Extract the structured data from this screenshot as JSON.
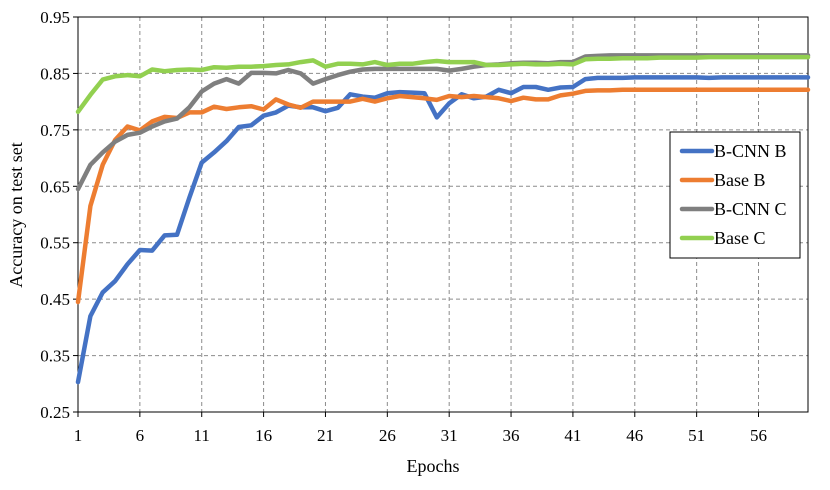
{
  "chart_data": {
    "type": "line",
    "xlabel": "Epochs",
    "ylabel": "Accuracy on test set",
    "xlim": [
      1,
      60
    ],
    "ylim": [
      0.25,
      0.95
    ],
    "x_ticks": [
      1,
      6,
      11,
      16,
      21,
      26,
      31,
      36,
      41,
      46,
      51,
      56
    ],
    "y_ticks": [
      0.25,
      0.35,
      0.45,
      0.55,
      0.65,
      0.75,
      0.85,
      0.95
    ],
    "y_tick_labels": [
      "0.25",
      "0.35",
      "0.45",
      "0.55",
      "0.65",
      "0.75",
      "0.85",
      "0.95"
    ],
    "grid": true,
    "legend_position": "right",
    "x": [
      1,
      2,
      3,
      4,
      5,
      6,
      7,
      8,
      9,
      10,
      11,
      12,
      13,
      14,
      15,
      16,
      17,
      18,
      19,
      20,
      21,
      22,
      23,
      24,
      25,
      26,
      27,
      28,
      29,
      30,
      31,
      32,
      33,
      34,
      35,
      36,
      37,
      38,
      39,
      40,
      41,
      42,
      43,
      44,
      45,
      46,
      47,
      48,
      49,
      50,
      51,
      52,
      53,
      54,
      55,
      56,
      57,
      58,
      59,
      60
    ],
    "series": [
      {
        "name": "B-CNN B",
        "color": "#4472C4",
        "values": [
          0.303,
          0.42,
          0.462,
          0.482,
          0.512,
          0.537,
          0.536,
          0.563,
          0.564,
          0.63,
          0.692,
          0.71,
          0.73,
          0.755,
          0.758,
          0.775,
          0.781,
          0.793,
          0.79,
          0.79,
          0.783,
          0.789,
          0.813,
          0.809,
          0.807,
          0.815,
          0.817,
          0.816,
          0.815,
          0.772,
          0.797,
          0.813,
          0.806,
          0.809,
          0.821,
          0.815,
          0.826,
          0.826,
          0.821,
          0.825,
          0.826,
          0.84,
          0.842,
          0.842,
          0.842,
          0.843,
          0.843,
          0.843,
          0.843,
          0.843,
          0.843,
          0.842,
          0.843,
          0.843,
          0.843,
          0.843,
          0.843,
          0.843,
          0.843,
          0.843
        ]
      },
      {
        "name": "Base B",
        "color": "#ED7D31",
        "values": [
          0.445,
          0.615,
          0.688,
          0.732,
          0.756,
          0.749,
          0.765,
          0.773,
          0.771,
          0.781,
          0.781,
          0.791,
          0.787,
          0.79,
          0.792,
          0.786,
          0.804,
          0.795,
          0.789,
          0.8,
          0.8,
          0.8,
          0.8,
          0.805,
          0.8,
          0.806,
          0.81,
          0.808,
          0.806,
          0.803,
          0.81,
          0.808,
          0.81,
          0.808,
          0.806,
          0.801,
          0.807,
          0.804,
          0.804,
          0.811,
          0.814,
          0.819,
          0.82,
          0.82,
          0.821,
          0.821,
          0.821,
          0.821,
          0.821,
          0.821,
          0.821,
          0.821,
          0.821,
          0.821,
          0.821,
          0.821,
          0.821,
          0.821,
          0.821,
          0.821
        ]
      },
      {
        "name": "B-CNN C",
        "color": "#7F7F7F",
        "values": [
          0.645,
          0.688,
          0.71,
          0.729,
          0.741,
          0.745,
          0.756,
          0.765,
          0.77,
          0.79,
          0.818,
          0.832,
          0.84,
          0.832,
          0.851,
          0.851,
          0.85,
          0.856,
          0.85,
          0.832,
          0.84,
          0.847,
          0.853,
          0.857,
          0.858,
          0.858,
          0.858,
          0.858,
          0.858,
          0.858,
          0.855,
          0.858,
          0.862,
          0.865,
          0.866,
          0.868,
          0.869,
          0.869,
          0.868,
          0.87,
          0.87,
          0.88,
          0.881,
          0.882,
          0.882,
          0.882,
          0.882,
          0.882,
          0.882,
          0.882,
          0.882,
          0.882,
          0.882,
          0.882,
          0.882,
          0.882,
          0.882,
          0.882,
          0.882,
          0.882
        ]
      },
      {
        "name": "Base C",
        "color": "#92D050",
        "values": [
          0.782,
          0.812,
          0.839,
          0.845,
          0.847,
          0.845,
          0.857,
          0.854,
          0.856,
          0.857,
          0.856,
          0.861,
          0.86,
          0.862,
          0.862,
          0.863,
          0.865,
          0.866,
          0.87,
          0.873,
          0.862,
          0.867,
          0.867,
          0.866,
          0.87,
          0.865,
          0.867,
          0.867,
          0.87,
          0.872,
          0.87,
          0.87,
          0.87,
          0.865,
          0.865,
          0.866,
          0.867,
          0.866,
          0.866,
          0.867,
          0.866,
          0.875,
          0.876,
          0.876,
          0.877,
          0.877,
          0.877,
          0.878,
          0.878,
          0.878,
          0.878,
          0.879,
          0.879,
          0.879,
          0.879,
          0.879,
          0.879,
          0.879,
          0.879,
          0.879
        ]
      }
    ]
  }
}
